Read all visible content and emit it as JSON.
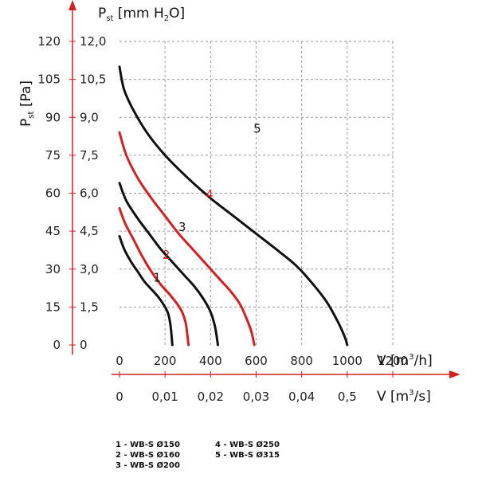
{
  "chart_data": {
    "type": "line",
    "y_axis_pa": {
      "label_main": "P",
      "label_sub": "st",
      "label_unit": "[Pa]",
      "ticks": [
        "0",
        "15",
        "30",
        "45",
        "60",
        "75",
        "90",
        "105",
        "120"
      ],
      "ylim": [
        0,
        120
      ]
    },
    "y_axis_mm": {
      "label_main": "P",
      "label_sub": "st",
      "label_unit": "[mm H",
      "label_unit_sub": "2",
      "label_unit_end": "O]",
      "ticks": [
        "0",
        "1,5",
        "3,0",
        "4,5",
        "6,0",
        "7,5",
        "9,0",
        "10,5",
        "12,0"
      ],
      "ylim": [
        0,
        12
      ]
    },
    "x_axis_m3h": {
      "label": "V [m",
      "label_sup": "3",
      "label_end": "/h]",
      "ticks": [
        "0",
        "200",
        "400",
        "600",
        "800",
        "1000",
        "1200"
      ],
      "xlim": [
        0,
        1200
      ]
    },
    "x_axis_m3s": {
      "label": "V [m",
      "label_sup": "3",
      "label_end": "/s]",
      "ticks": [
        "0",
        "0,01",
        "0,02",
        "0,03",
        "0,04",
        "0,5"
      ]
    },
    "grid": true,
    "series": [
      {
        "name": "1",
        "legend": "1 - WB-S Ø150",
        "color": "#111111",
        "x": [
          0,
          20,
          50,
          80,
          110,
          140,
          170,
          200,
          215,
          225,
          232
        ],
        "y": [
          43,
          38,
          33,
          29,
          25,
          22,
          19,
          15,
          12,
          7,
          0
        ]
      },
      {
        "name": "2",
        "legend": "2 - WB-S Ø160",
        "color": "#d42020",
        "x": [
          0,
          25,
          60,
          100,
          140,
          180,
          220,
          255,
          275,
          290,
          298,
          303
        ],
        "y": [
          54,
          48,
          42,
          35,
          29,
          24,
          20,
          16,
          13,
          9,
          4,
          0
        ]
      },
      {
        "name": "3",
        "legend": "3 - WB-S Ø200",
        "color": "#111111",
        "x": [
          0,
          30,
          80,
          130,
          180,
          230,
          280,
          330,
          370,
          400,
          420,
          432
        ],
        "y": [
          64,
          57,
          50,
          44,
          38,
          33,
          28,
          23,
          18,
          13,
          7,
          0
        ]
      },
      {
        "name": "4",
        "legend": "4 - WB-S Ø250",
        "color": "#d42020",
        "x": [
          0,
          30,
          80,
          140,
          200,
          260,
          320,
          380,
          440,
          490,
          530,
          560,
          580,
          592
        ],
        "y": [
          84,
          75,
          66,
          58,
          51,
          44,
          38,
          32,
          26,
          21,
          16,
          10,
          5,
          0
        ]
      },
      {
        "name": "5",
        "legend": "5 - WB-S Ø315",
        "color": "#111111",
        "x": [
          0,
          20,
          60,
          120,
          200,
          300,
          400,
          500,
          600,
          700,
          780,
          850,
          910,
          960,
          990,
          1000
        ],
        "y": [
          110,
          101,
          93,
          84,
          75,
          66,
          58,
          51,
          44,
          37,
          31,
          24,
          17,
          9,
          3,
          0
        ]
      }
    ],
    "curve_labels": [
      {
        "series": "1",
        "text": "1",
        "color": "#111111"
      },
      {
        "series": "2",
        "text": "2",
        "color": "#d42020"
      },
      {
        "series": "3",
        "text": "3",
        "color": "#111111"
      },
      {
        "series": "4",
        "text": "4",
        "color": "#d42020"
      },
      {
        "series": "5",
        "text": "5",
        "color": "#111111"
      }
    ],
    "axis_color": "#d42020"
  },
  "legend_col1": [
    "1 - WB-S Ø150",
    "2 - WB-S Ø160",
    "3 - WB-S Ø200"
  ],
  "legend_col2": [
    "4 - WB-S Ø250",
    "5 - WB-S Ø315"
  ]
}
